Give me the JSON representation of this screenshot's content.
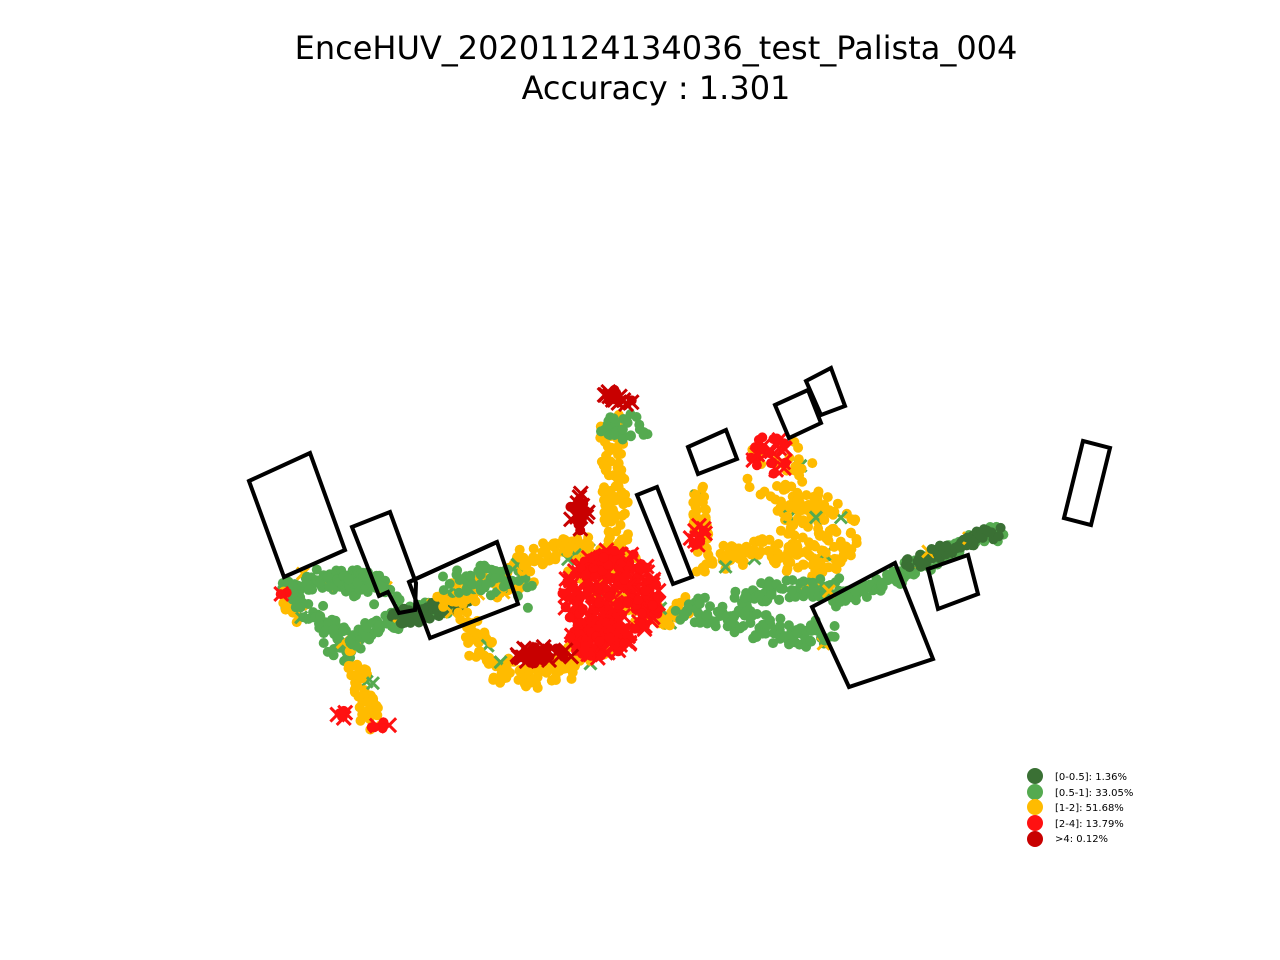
{
  "chart_data": {
    "type": "scatter",
    "title": "EnceHUV_20201124134036_test_Palista_004",
    "subtitle": "Accuracy : 1.301",
    "axes_visible": false,
    "legend_position": "lower-right",
    "categories": [
      {
        "key": "c0",
        "label": "[0-0.5]: 1.36%",
        "color": "#3a7034"
      },
      {
        "key": "c1",
        "label": "[0.5-1]: 33.05%",
        "color": "#55aa50"
      },
      {
        "key": "c2",
        "label": "[1-2]: 51.68%",
        "color": "#ffbb00"
      },
      {
        "key": "c3",
        "label": "[2-4]: 13.79%",
        "color": "#ff1111"
      },
      {
        "key": "c4",
        "label": ">4: 0.12%",
        "color": "#c80000"
      }
    ],
    "obstacle_count": 11
  }
}
